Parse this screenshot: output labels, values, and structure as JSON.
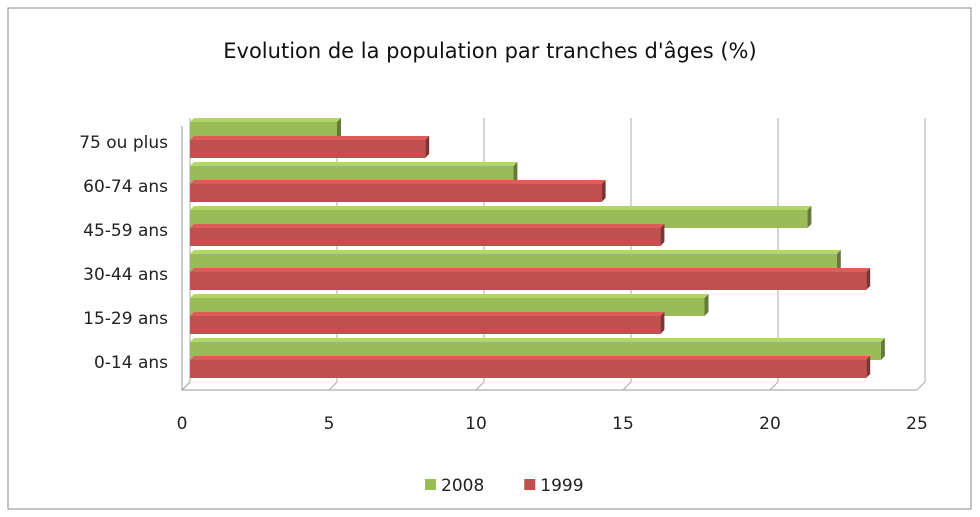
{
  "chart_data": {
    "type": "bar",
    "orientation": "horizontal",
    "title": "Evolution de la population par tranches d'âges (%)",
    "categories": [
      "75 ou plus",
      "60-74 ans",
      "45-59 ans",
      "30-44 ans",
      "15-29 ans",
      "0-14 ans"
    ],
    "series": [
      {
        "name": "2008",
        "color": "#9bbb59",
        "values": [
          5,
          11,
          21,
          22,
          17.5,
          23.5
        ]
      },
      {
        "name": "1999",
        "color": "#c0504d",
        "values": [
          8,
          14,
          16,
          23,
          16,
          23
        ]
      }
    ],
    "xlim": [
      0,
      25
    ],
    "xticks": [
      0,
      5,
      10,
      15,
      20,
      25
    ],
    "grid": true,
    "legend": "bottom"
  }
}
